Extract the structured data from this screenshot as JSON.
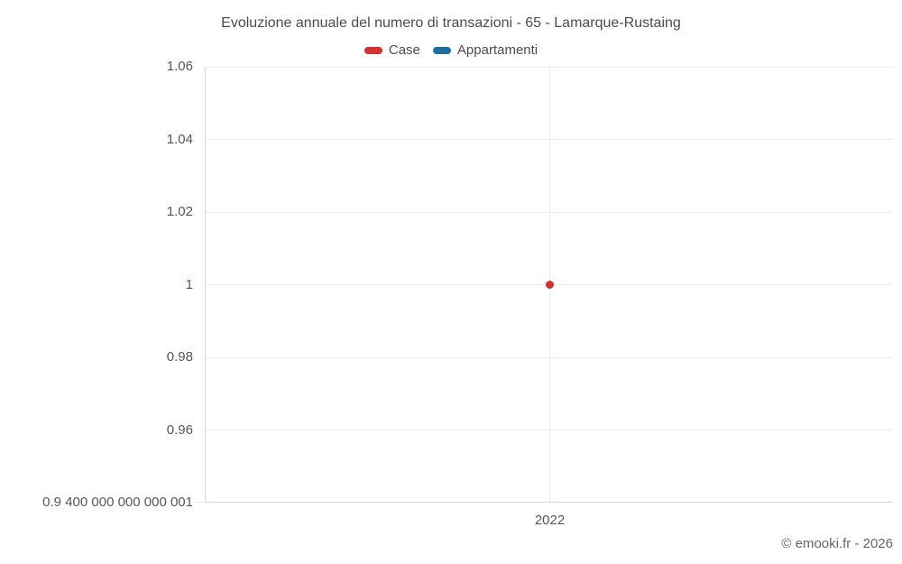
{
  "chart": {
    "title": "Evoluzione annuale del numero di transazioni - 65 - Lamarque-Rustaing"
  },
  "chart_data": {
    "type": "line",
    "categories": [
      "2022"
    ],
    "series": [
      {
        "name": "Case",
        "color": "#d2312e",
        "values": [
          1
        ]
      },
      {
        "name": "Appartamenti",
        "color": "#1b6ea0",
        "values": [
          null
        ]
      }
    ],
    "title": "Evoluzione annuale del numero di transazioni - 65 - Lamarque-Rustaing",
    "xlabel": "",
    "ylabel": "",
    "ylim": [
      0.94,
      1.06
    ],
    "yticks": [
      {
        "value": 1.06,
        "label": "1.06"
      },
      {
        "value": 1.04,
        "label": "1.04"
      },
      {
        "value": 1.02,
        "label": "1.02"
      },
      {
        "value": 1.0,
        "label": "1"
      },
      {
        "value": 0.98,
        "label": "0.98"
      },
      {
        "value": 0.96,
        "label": "0.96"
      },
      {
        "value": 0.94,
        "label": "0.9 400 000 000 000 001"
      }
    ],
    "grid": true,
    "legend_position": "top"
  },
  "footer": {
    "copyright": "© emooki.fr - 2026"
  }
}
